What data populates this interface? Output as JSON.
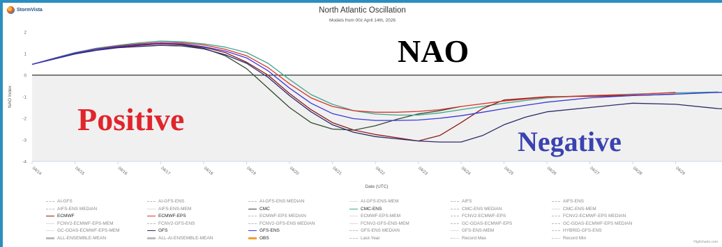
{
  "header": {
    "brand_name": "StormVista",
    "title": "North Atlantic Oscillation",
    "subtitle": "Models from 00z April 14th, 2026",
    "credits": "Highcharts.com"
  },
  "overlays": {
    "nao": {
      "text": "NAO",
      "color": "#000000"
    },
    "positive": {
      "text": "Positive",
      "color": "#e0252b"
    },
    "negative": {
      "text": "Negative",
      "color": "#3a43b0"
    }
  },
  "chart_data": {
    "type": "line",
    "title": "North Atlantic Oscillation",
    "subtitle": "Models from 00z April 14th, 2026",
    "xlabel": "Date (UTC)",
    "ylabel": "NAO Index",
    "xlim": [
      "04/14",
      "04/30"
    ],
    "ylim": [
      -4,
      2
    ],
    "yticks": [
      2,
      1,
      0,
      -1,
      -2,
      -3,
      -4
    ],
    "xticks": [
      "04/14",
      "04/15",
      "04/16",
      "04/17",
      "04/18",
      "04/19",
      "04/20",
      "04/21",
      "04/22",
      "04/23",
      "04/24",
      "04/25",
      "04/26",
      "04/27",
      "04/28",
      "04/29"
    ],
    "grid": false,
    "negative_band": [
      0,
      -4
    ],
    "series": [
      {
        "name": "CMC",
        "color": "#2f4a2f",
        "x": [
          0,
          0.5,
          1,
          1.5,
          2,
          2.5,
          3,
          3.5,
          4,
          4.5,
          5,
          5.5,
          6,
          6.5,
          7,
          7.5,
          8,
          8.5,
          9,
          9.5,
          10
        ],
        "y": [
          0.5,
          0.75,
          1.0,
          1.2,
          1.3,
          1.4,
          1.45,
          1.4,
          1.25,
          0.9,
          0.3,
          -0.6,
          -1.5,
          -2.2,
          -2.5,
          -2.55,
          -2.35,
          -2.05,
          -1.8,
          -1.65,
          -1.45
        ]
      },
      {
        "name": "CMC-ENS",
        "color": "#3fa58f",
        "x": [
          0,
          0.5,
          1,
          1.5,
          2,
          2.5,
          3,
          3.5,
          4,
          4.5,
          5,
          5.5,
          6,
          6.5,
          7,
          7.5,
          8,
          8.5,
          9,
          9.5,
          10,
          11,
          12,
          13,
          14,
          15,
          16
        ],
        "y": [
          0.5,
          0.78,
          1.05,
          1.25,
          1.38,
          1.5,
          1.58,
          1.55,
          1.45,
          1.3,
          1.05,
          0.55,
          -0.2,
          -0.9,
          -1.35,
          -1.65,
          -1.8,
          -1.85,
          -1.85,
          -1.75,
          -1.6,
          -1.3,
          -1.05,
          -0.95,
          -0.88,
          -0.82,
          -0.78
        ]
      },
      {
        "name": "ECMWF",
        "color": "#8b1a1a",
        "x": [
          0,
          0.5,
          1,
          1.5,
          2,
          2.5,
          3,
          3.5,
          4,
          4.5,
          5,
          5.5,
          6,
          6.5,
          7,
          7.5,
          8,
          8.5,
          9,
          9.5,
          10,
          10.5,
          11,
          12,
          13,
          14,
          15
        ],
        "y": [
          0.5,
          0.75,
          1.0,
          1.2,
          1.3,
          1.38,
          1.45,
          1.42,
          1.3,
          1.05,
          0.6,
          0.0,
          -0.85,
          -1.6,
          -2.2,
          -2.55,
          -2.75,
          -2.9,
          -3.05,
          -2.8,
          -2.2,
          -1.55,
          -1.15,
          -1.0,
          -0.98,
          -0.95,
          -0.88
        ]
      },
      {
        "name": "ECMWF-EPS",
        "color": "#d9342b",
        "x": [
          0,
          0.5,
          1,
          1.5,
          2,
          2.5,
          3,
          3.5,
          4,
          4.5,
          5,
          5.5,
          6,
          6.5,
          7,
          7.5,
          8,
          8.5,
          9,
          9.5,
          10,
          11,
          12,
          13,
          14,
          15
        ],
        "y": [
          0.5,
          0.77,
          1.03,
          1.22,
          1.35,
          1.45,
          1.52,
          1.5,
          1.4,
          1.2,
          0.9,
          0.35,
          -0.4,
          -1.05,
          -1.45,
          -1.65,
          -1.72,
          -1.72,
          -1.68,
          -1.6,
          -1.45,
          -1.2,
          -1.02,
          -0.95,
          -0.9,
          -0.8
        ]
      },
      {
        "name": "GFS",
        "color": "#2a2a6e",
        "x": [
          0,
          0.5,
          1,
          1.5,
          2,
          2.5,
          3,
          3.5,
          4,
          4.5,
          5,
          5.5,
          6,
          6.5,
          7,
          7.5,
          8,
          8.5,
          9,
          9.5,
          10,
          10.5,
          11,
          11.5,
          12,
          13,
          14,
          15,
          16,
          17
        ],
        "y": [
          0.5,
          0.74,
          0.98,
          1.15,
          1.27,
          1.33,
          1.38,
          1.35,
          1.22,
          0.95,
          0.55,
          -0.1,
          -0.95,
          -1.7,
          -2.3,
          -2.65,
          -2.85,
          -2.95,
          -3.05,
          -3.1,
          -3.1,
          -2.8,
          -2.3,
          -1.95,
          -1.7,
          -1.5,
          -1.3,
          -1.35,
          -1.55,
          -1.65
        ]
      },
      {
        "name": "GFS-ENS",
        "color": "#3838d8",
        "x": [
          0,
          0.5,
          1,
          1.5,
          2,
          2.5,
          3,
          3.5,
          4,
          4.5,
          5,
          5.5,
          6,
          6.5,
          7,
          7.5,
          8,
          8.5,
          9,
          9.5,
          10,
          10.5,
          11,
          11.5,
          12,
          13,
          14,
          15,
          16,
          17
        ],
        "y": [
          0.5,
          0.76,
          1.02,
          1.2,
          1.32,
          1.42,
          1.47,
          1.45,
          1.32,
          1.12,
          0.8,
          0.2,
          -0.6,
          -1.3,
          -1.78,
          -2.02,
          -2.1,
          -2.1,
          -2.08,
          -2.0,
          -1.88,
          -1.72,
          -1.55,
          -1.4,
          -1.25,
          -1.05,
          -0.95,
          -0.88,
          -0.8,
          -0.75
        ]
      }
    ]
  },
  "legend": [
    {
      "label": "AI-GFS",
      "color": "#bbbbbb",
      "style": "dashed",
      "dark": false
    },
    {
      "label": "AI-GFS-ENS",
      "color": "#bbbbbb",
      "style": "dashed",
      "dark": false
    },
    {
      "label": "AI-GFS-ENS MEDIAN",
      "color": "#bbbbbb",
      "style": "dashed",
      "dark": false
    },
    {
      "label": "AI-GFS-ENS-MEM",
      "color": "#dddddd",
      "style": "solid",
      "dark": false
    },
    {
      "label": "AIFS",
      "color": "#bbbbbb",
      "style": "dashed",
      "dark": false
    },
    {
      "label": "AIFS-ENS",
      "color": "#bbbbbb",
      "style": "dashed",
      "dark": false
    },
    {
      "label": "AIFS-ENS MEDIAN",
      "color": "#bbbbbb",
      "style": "dashed",
      "dark": false
    },
    {
      "label": "AIFS-ENS-MEM",
      "color": "#dddddd",
      "style": "solid",
      "dark": false
    },
    {
      "label": "CMC",
      "color": "#2f4a2f",
      "style": "solid",
      "dark": true
    },
    {
      "label": "CMC-ENS",
      "color": "#3fa58f",
      "style": "solid",
      "dark": true
    },
    {
      "label": "CMC-ENS MEDIAN",
      "color": "#bbbbbb",
      "style": "dashed",
      "dark": false
    },
    {
      "label": "CMC-ENS-MEM",
      "color": "#dddddd",
      "style": "solid",
      "dark": false
    },
    {
      "label": "ECMWF",
      "color": "#8b1a1a",
      "style": "solid",
      "dark": true
    },
    {
      "label": "ECMWF-EPS",
      "color": "#d9342b",
      "style": "solid",
      "dark": true
    },
    {
      "label": "ECMWF-EPS MEDIAN",
      "color": "#bbbbbb",
      "style": "dashed",
      "dark": false
    },
    {
      "label": "ECMWF-EPS-MEM",
      "color": "#dddddd",
      "style": "solid",
      "dark": false
    },
    {
      "label": "FCNV2-ECMWF-EPS",
      "color": "#bbbbbb",
      "style": "dashed",
      "dark": false
    },
    {
      "label": "FCNV2-ECMWF-EPS MEDIAN",
      "color": "#bbbbbb",
      "style": "dashed",
      "dark": false
    },
    {
      "label": "FCNV2-ECMWF-EPS-MEM",
      "color": "#dddddd",
      "style": "solid",
      "dark": false
    },
    {
      "label": "FCNV2-GFS-ENS",
      "color": "#bbbbbb",
      "style": "dashed",
      "dark": false
    },
    {
      "label": "FCNV2-GFS-ENS MEDIAN",
      "color": "#bbbbbb",
      "style": "dashed",
      "dark": false
    },
    {
      "label": "FCNV2-GFS-ENS-MEM",
      "color": "#dddddd",
      "style": "solid",
      "dark": false
    },
    {
      "label": "GC-GDAS-ECMWF-EPS",
      "color": "#bbbbbb",
      "style": "dashed",
      "dark": false
    },
    {
      "label": "GC-GDAS-ECMWF-EPS MEDIAN",
      "color": "#bbbbbb",
      "style": "dashed",
      "dark": false
    },
    {
      "label": "GC-GDAS-ECMWF-EPS-MEM",
      "color": "#dddddd",
      "style": "solid",
      "dark": false
    },
    {
      "label": "GFS",
      "color": "#2a2a6e",
      "style": "solid",
      "dark": true
    },
    {
      "label": "GFS-ENS",
      "color": "#3838d8",
      "style": "solid",
      "dark": true
    },
    {
      "label": "GFS-ENS MEDIAN",
      "color": "#bbbbbb",
      "style": "dashed",
      "dark": false
    },
    {
      "label": "GFS-ENS-MEM",
      "color": "#dddddd",
      "style": "solid",
      "dark": false
    },
    {
      "label": "HYBRID-GFS-ENS",
      "color": "#bbbbbb",
      "style": "dashed",
      "dark": false
    },
    {
      "label": "ALL-ENSEMBLE-MEAN",
      "color": "#bbbbbb",
      "style": "solid",
      "dark": false
    },
    {
      "label": "ALL-AI-ENSEMBLE-MEAN",
      "color": "#bbbbbb",
      "style": "solid",
      "dark": false
    },
    {
      "label": "OBS",
      "color": "#f0a030",
      "style": "solid",
      "dark": true
    },
    {
      "label": "Last-Year",
      "color": "#bbbbbb",
      "style": "dashed",
      "dark": false
    },
    {
      "label": "Record Max",
      "color": "#bbbbbb",
      "style": "dotted",
      "dark": false
    },
    {
      "label": "Record Min",
      "color": "#bbbbbb",
      "style": "dotted",
      "dark": false
    }
  ]
}
